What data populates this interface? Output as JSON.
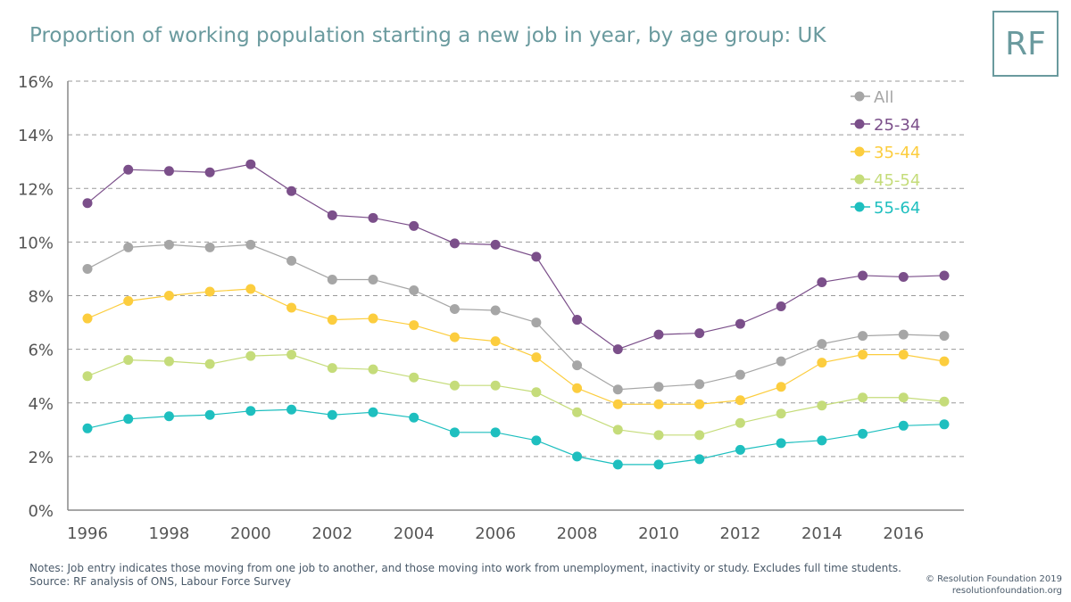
{
  "header": {
    "title": "Proportion of working population starting a new job in year, by age group: UK",
    "logo_text": "RF"
  },
  "footer": {
    "notes": "Notes: Job entry indicates those moving from one job to another, and those moving into work from unemployment, inactivity or study. Excludes full time students.",
    "source": "Source: RF analysis of ONS, Labour Force Survey",
    "copyright": "© Resolution Foundation 2019",
    "website": "resolutionfoundation.org"
  },
  "chart_data": {
    "type": "line",
    "title": "Proportion of working population starting a new job in year, by age group: UK",
    "xlabel": "",
    "ylabel": "",
    "x": [
      1996,
      1997,
      1998,
      1999,
      2000,
      2001,
      2002,
      2003,
      2004,
      2005,
      2006,
      2007,
      2008,
      2009,
      2010,
      2011,
      2012,
      2013,
      2014,
      2015,
      2016,
      2017
    ],
    "x_tick_labels": [
      "1996",
      "1998",
      "2000",
      "2002",
      "2004",
      "2006",
      "2008",
      "2010",
      "2012",
      "2014",
      "2016"
    ],
    "y_tick_labels": [
      "0%",
      "2%",
      "4%",
      "6%",
      "8%",
      "10%",
      "12%",
      "14%",
      "16%"
    ],
    "ylim": [
      0,
      16
    ],
    "y_unit": "%",
    "grid": true,
    "legend_position": "top-right",
    "series": [
      {
        "name": "All",
        "color": "#a6a6a6",
        "values": [
          9.0,
          9.8,
          9.9,
          9.8,
          9.9,
          9.3,
          8.6,
          8.6,
          8.2,
          7.5,
          7.45,
          7.0,
          5.4,
          4.5,
          4.6,
          4.7,
          5.05,
          5.55,
          6.2,
          6.5,
          6.55,
          6.5
        ]
      },
      {
        "name": "25-34",
        "color": "#7b4f8a",
        "values": [
          11.45,
          12.7,
          12.65,
          12.6,
          12.9,
          11.9,
          11.0,
          10.9,
          10.6,
          9.95,
          9.9,
          9.45,
          7.1,
          6.0,
          6.55,
          6.6,
          6.95,
          7.6,
          8.5,
          8.75,
          8.7,
          8.75
        ]
      },
      {
        "name": "35-44",
        "color": "#fccd3e",
        "values": [
          7.15,
          7.8,
          8.0,
          8.15,
          8.25,
          7.55,
          7.1,
          7.15,
          6.9,
          6.45,
          6.3,
          5.7,
          4.55,
          3.95,
          3.95,
          3.95,
          4.1,
          4.6,
          5.5,
          5.8,
          5.8,
          5.55
        ]
      },
      {
        "name": "45-54",
        "color": "#c5dc7a",
        "values": [
          5.0,
          5.6,
          5.55,
          5.45,
          5.75,
          5.8,
          5.3,
          5.25,
          4.95,
          4.65,
          4.65,
          4.4,
          3.65,
          3.0,
          2.8,
          2.8,
          3.25,
          3.6,
          3.9,
          4.2,
          4.2,
          4.05
        ]
      },
      {
        "name": "55-64",
        "color": "#1ebfbf",
        "values": [
          3.05,
          3.4,
          3.5,
          3.55,
          3.7,
          3.75,
          3.55,
          3.65,
          3.45,
          2.9,
          2.9,
          2.6,
          2.0,
          1.7,
          1.7,
          1.9,
          2.25,
          2.5,
          2.6,
          2.85,
          3.15,
          3.2
        ]
      }
    ]
  }
}
